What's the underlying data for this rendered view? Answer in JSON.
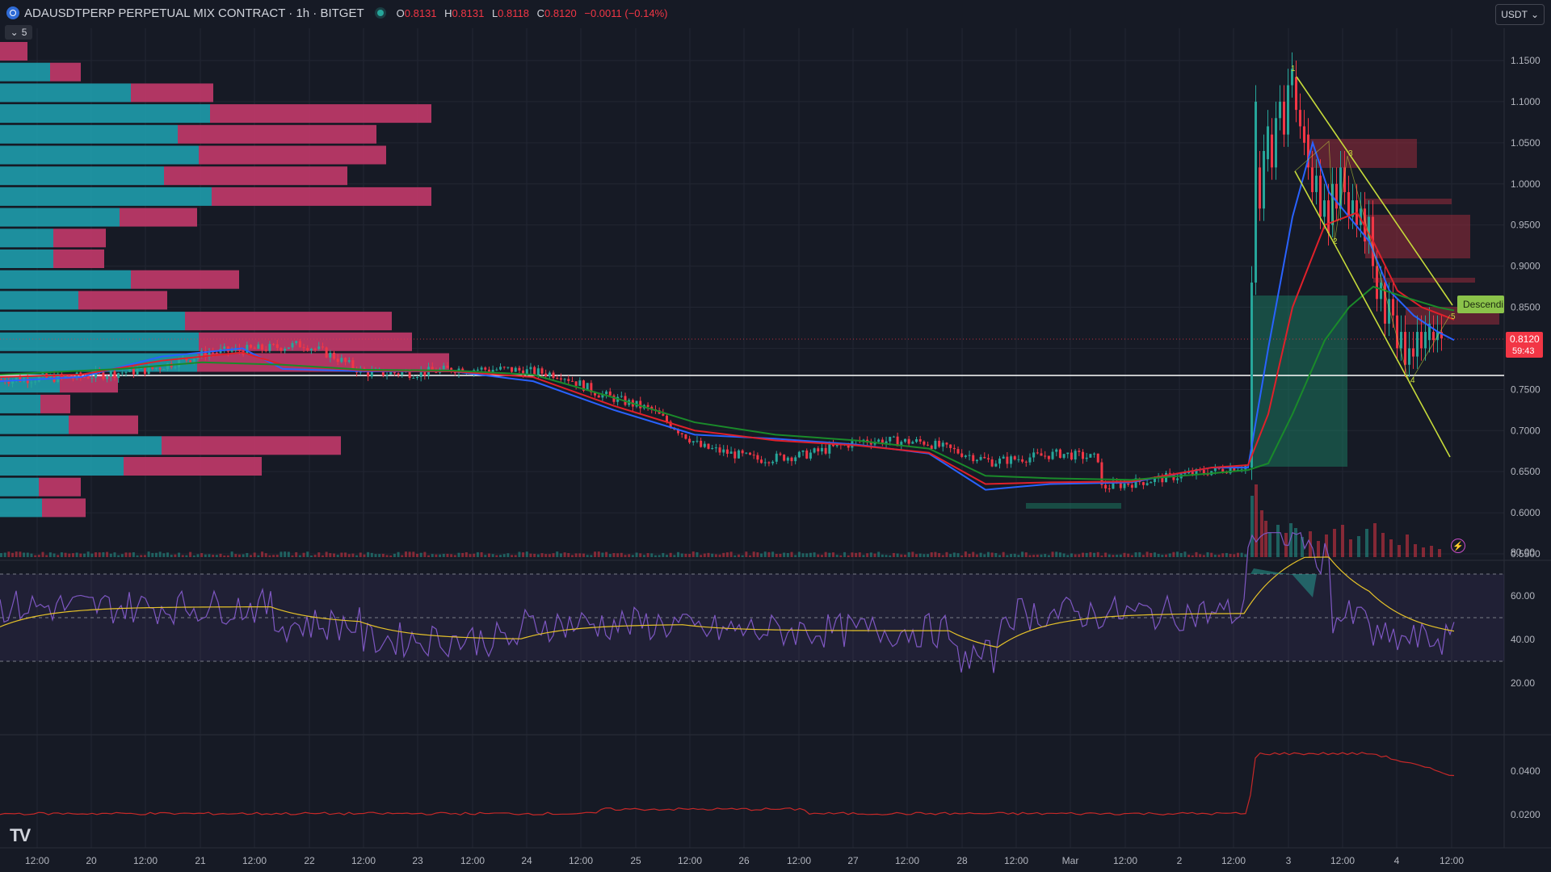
{
  "header": {
    "symbol_title": "ADAUSDTPERP PERPETUAL MIX CONTRACT · 1h · BITGET",
    "ohlc": {
      "o_label": "O",
      "o": "0.8131",
      "h_label": "H",
      "h": "0.8131",
      "l_label": "L",
      "l": "0.8118",
      "c_label": "C",
      "c": "0.8120",
      "change": "−0.0011 (−0.14%)"
    },
    "indicator_count": "5",
    "currency": "USDT"
  },
  "price_axis": {
    "labels": [
      "1.1500",
      "1.1000",
      "1.0500",
      "1.0000",
      "0.9500",
      "0.9000",
      "0.8500",
      "0.8000",
      "0.7500",
      "0.7000",
      "0.6500",
      "0.6000",
      "0.5500"
    ]
  },
  "last_price": {
    "value": "0.8120",
    "countdown": "59:43",
    "color": "#f23645"
  },
  "pattern_label": "Descendi",
  "rsi_axis": {
    "labels": [
      "80.00",
      "60.00",
      "40.00",
      "20.00"
    ]
  },
  "ind3_axis": {
    "labels": [
      "0.0400",
      "0.0200"
    ]
  },
  "time_axis": {
    "labels": [
      "12:00",
      "20",
      "12:00",
      "21",
      "12:00",
      "22",
      "12:00",
      "23",
      "12:00",
      "24",
      "12:00",
      "25",
      "12:00",
      "26",
      "12:00",
      "27",
      "12:00",
      "28",
      "12:00",
      "Mar",
      "12:00",
      "2",
      "12:00",
      "3",
      "12:00",
      "4",
      "12:00"
    ]
  },
  "wave_labels": [
    "1",
    "2",
    "3",
    "4",
    "5"
  ],
  "colors": {
    "bg": "#161a25",
    "up": "#26a69a",
    "down": "#f23645",
    "ema_fast": "#2962ff",
    "ema_mid": "#e0202a",
    "ema_slow": "#1a8a2a",
    "rsi": "#7e57c2",
    "rsi_ma": "#e6c229",
    "channel": "#c6db3a"
  }
}
